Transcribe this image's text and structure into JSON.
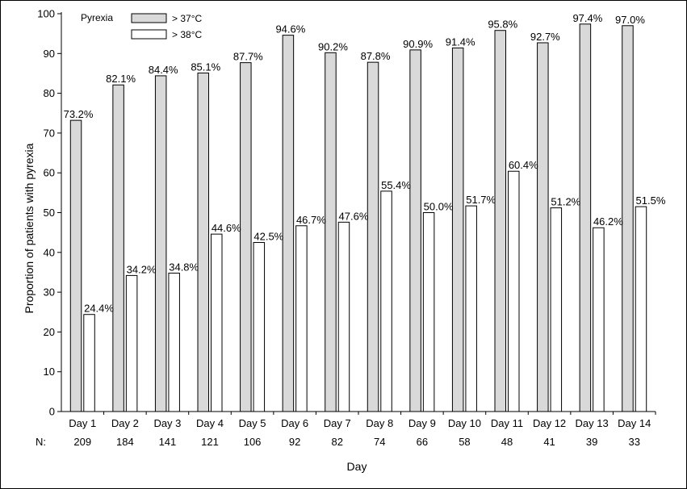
{
  "chart_data": {
    "type": "bar",
    "xlabel": "Day",
    "ylabel": "Proportion of patients with pyrexia",
    "ylim": [
      0,
      100
    ],
    "yticks": [
      0,
      10,
      20,
      30,
      40,
      50,
      60,
      70,
      80,
      90,
      100
    ],
    "categories": [
      "Day 1",
      "Day 2",
      "Day 3",
      "Day 4",
      "Day 5",
      "Day 6",
      "Day 7",
      "Day 8",
      "Day 9",
      "Day 10",
      "Day 11",
      "Day 12",
      "Day 13",
      "Day 14"
    ],
    "n_prefix": "N:",
    "n_values": [
      "209",
      "184",
      "141",
      "121",
      "106",
      "92",
      "82",
      "74",
      "66",
      "58",
      "48",
      "41",
      "39",
      "33"
    ],
    "legend": {
      "title": "Pyrexia",
      "placement": "top-left"
    },
    "series": [
      {
        "name": "> 37°C",
        "color": "#d9d9d9",
        "values": [
          73.2,
          82.1,
          84.4,
          85.1,
          87.7,
          94.6,
          90.2,
          87.8,
          90.9,
          91.4,
          95.8,
          92.7,
          97.4,
          97.0
        ],
        "labels": [
          "73.2%",
          "82.1%",
          "84.4%",
          "85.1%",
          "87.7%",
          "94.6%",
          "90.2%",
          "87.8%",
          "90.9%",
          "91.4%",
          "95.8%",
          "92.7%",
          "97.4%",
          "97.0%"
        ]
      },
      {
        "name": "> 38°C",
        "color": "#ffffff",
        "values": [
          24.4,
          34.2,
          34.8,
          44.6,
          42.5,
          46.7,
          47.6,
          55.4,
          50.0,
          51.7,
          60.4,
          51.2,
          46.2,
          51.5
        ],
        "labels": [
          "24.4%",
          "34.2%",
          "34.8%",
          "44.6%",
          "42.5%",
          "46.7%",
          "47.6%",
          "55.4%",
          "50.0%",
          "51.7%",
          "60.4%",
          "51.2%",
          "46.2%",
          "51.5%"
        ]
      }
    ]
  }
}
